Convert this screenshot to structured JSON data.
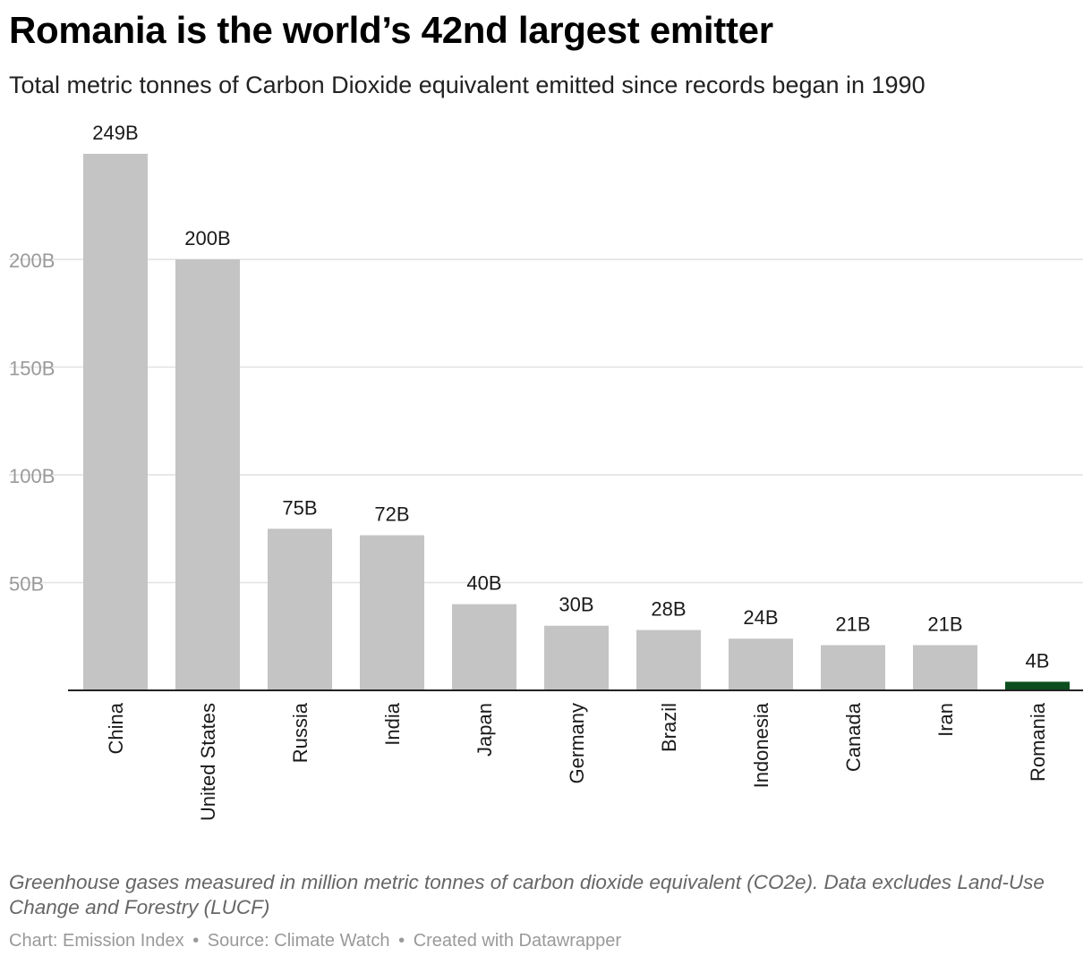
{
  "header": {
    "title": "Romania is the world’s 42nd largest emitter",
    "subtitle": "Total metric tonnes of Carbon Dioxide equivalent emitted since records began in 1990"
  },
  "chart_data": {
    "type": "bar",
    "categories": [
      "China",
      "United States",
      "Russia",
      "India",
      "Japan",
      "Germany",
      "Brazil",
      "Indonesia",
      "Canada",
      "Iran",
      "Romania"
    ],
    "values": [
      249,
      200,
      75,
      72,
      40,
      30,
      28,
      24,
      21,
      21,
      4
    ],
    "value_labels": [
      "249B",
      "200B",
      "75B",
      "72B",
      "40B",
      "30B",
      "28B",
      "24B",
      "21B",
      "21B",
      "4B"
    ],
    "unit": "B",
    "ylim": [
      0,
      249
    ],
    "yticks": [
      50,
      100,
      150,
      200
    ],
    "ytick_labels": [
      "50B",
      "100B",
      "150B",
      "200B"
    ],
    "grid": true,
    "colors": {
      "default": "#c4c4c4",
      "highlight": "#0b4d1e",
      "grid": "#e1e1e1",
      "axis": "#222222",
      "tick_text": "#9a9a9a"
    },
    "highlight": "Romania"
  },
  "footer": {
    "note": "Greenhouse gases measured in million metric tonnes of carbon dioxide equivalent (CO2e). Data excludes Land-Use Change and Forestry (LUCF)",
    "credit_chart": "Chart: Emission Index",
    "credit_source": "Source: Climate Watch",
    "credit_tool": "Created with Datawrapper",
    "separator": "•"
  }
}
